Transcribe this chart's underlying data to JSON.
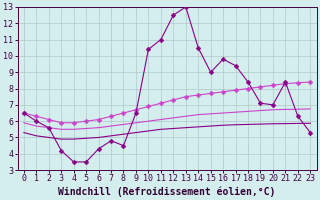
{
  "xlabel": "Windchill (Refroidissement éolien,°C)",
  "background_color": "#d4eeee",
  "grid_color": "#b0c8c8",
  "line_color_dark": "#880088",
  "line_color_light": "#cc44cc",
  "xlim": [
    -0.5,
    23.5
  ],
  "ylim": [
    3,
    13
  ],
  "xticks": [
    0,
    1,
    2,
    3,
    4,
    5,
    6,
    7,
    8,
    9,
    10,
    11,
    12,
    13,
    14,
    15,
    16,
    17,
    18,
    19,
    20,
    21,
    22,
    23
  ],
  "yticks": [
    3,
    4,
    5,
    6,
    7,
    8,
    9,
    10,
    11,
    12,
    13
  ],
  "line1_x": [
    0,
    1,
    2,
    3,
    4,
    5,
    6,
    7,
    8,
    9,
    10,
    11,
    12,
    13,
    14,
    15,
    16,
    17,
    18,
    19,
    20,
    21,
    22,
    23
  ],
  "line1_y": [
    6.5,
    6.0,
    5.6,
    4.2,
    3.5,
    3.5,
    4.3,
    4.8,
    4.5,
    6.5,
    10.4,
    11.0,
    12.5,
    13.0,
    10.5,
    9.0,
    9.8,
    9.4,
    8.4,
    7.1,
    7.0,
    8.4,
    6.3,
    5.3
  ],
  "line2_x": [
    0,
    1,
    2,
    3,
    4,
    5,
    6,
    7,
    8,
    9,
    10,
    11,
    12,
    13,
    14,
    15,
    16,
    17,
    18,
    19,
    20,
    21,
    22,
    23
  ],
  "line2_y": [
    6.5,
    6.3,
    6.1,
    5.9,
    5.9,
    6.0,
    6.1,
    6.3,
    6.5,
    6.7,
    6.9,
    7.1,
    7.3,
    7.5,
    7.6,
    7.7,
    7.8,
    7.9,
    8.0,
    8.1,
    8.2,
    8.3,
    8.35,
    8.4
  ],
  "line3_x": [
    0,
    1,
    2,
    3,
    4,
    5,
    6,
    7,
    8,
    9,
    10,
    11,
    12,
    13,
    14,
    15,
    16,
    17,
    18,
    19,
    20,
    21,
    22,
    23
  ],
  "line3_y": [
    5.9,
    5.7,
    5.6,
    5.5,
    5.5,
    5.55,
    5.6,
    5.7,
    5.8,
    5.9,
    6.0,
    6.1,
    6.2,
    6.3,
    6.4,
    6.45,
    6.5,
    6.55,
    6.6,
    6.65,
    6.7,
    6.72,
    6.73,
    6.75
  ],
  "line4_x": [
    0,
    1,
    2,
    3,
    4,
    5,
    6,
    7,
    8,
    9,
    10,
    11,
    12,
    13,
    14,
    15,
    16,
    17,
    18,
    19,
    20,
    21,
    22,
    23
  ],
  "line4_y": [
    5.3,
    5.1,
    5.0,
    4.9,
    4.9,
    4.95,
    5.0,
    5.1,
    5.2,
    5.3,
    5.4,
    5.5,
    5.55,
    5.6,
    5.65,
    5.7,
    5.75,
    5.78,
    5.8,
    5.82,
    5.84,
    5.85,
    5.86,
    5.87
  ],
  "marker_size": 2.5,
  "linewidth": 0.8,
  "tick_fontsize": 6,
  "xlabel_fontsize": 7
}
